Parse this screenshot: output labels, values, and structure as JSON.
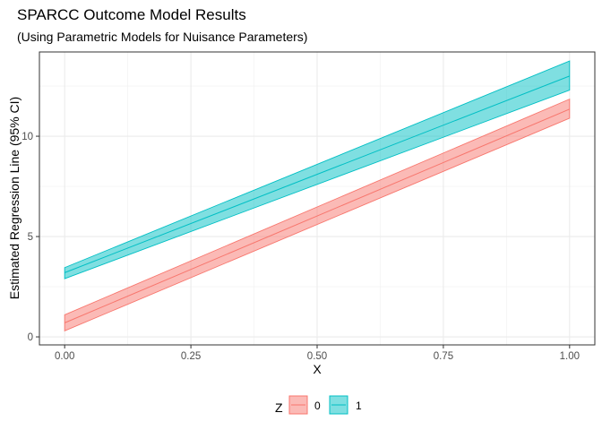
{
  "chart_data": {
    "type": "line",
    "title": "SPARCC Outcome Model Results",
    "subtitle": "(Using Parametric Models for Nuisance Parameters)",
    "xlabel": "X",
    "ylabel": "Estimated Regression Line (95% CI)",
    "xlim": [
      -0.05,
      1.05
    ],
    "ylim": [
      -0.4,
      14.2
    ],
    "x_ticks": [
      0.0,
      0.25,
      0.5,
      0.75,
      1.0
    ],
    "x_tick_labels": [
      "0.00",
      "0.25",
      "0.50",
      "0.75",
      "1.00"
    ],
    "y_ticks": [
      0,
      5,
      10
    ],
    "y_tick_labels": [
      "0",
      "5",
      "10"
    ],
    "grid": true,
    "legend": {
      "title": "Z",
      "position": "bottom"
    },
    "series": [
      {
        "name": "0",
        "color": "#F8766D",
        "x": [
          0.0,
          1.0
        ],
        "fit": [
          0.7,
          11.35
        ],
        "lower": [
          0.3,
          10.9
        ],
        "upper": [
          1.1,
          11.85
        ]
      },
      {
        "name": "1",
        "color": "#00BFC4",
        "x": [
          0.0,
          1.0
        ],
        "fit": [
          3.2,
          13.0
        ],
        "lower": [
          2.9,
          12.3
        ],
        "upper": [
          3.45,
          13.75
        ]
      }
    ]
  }
}
